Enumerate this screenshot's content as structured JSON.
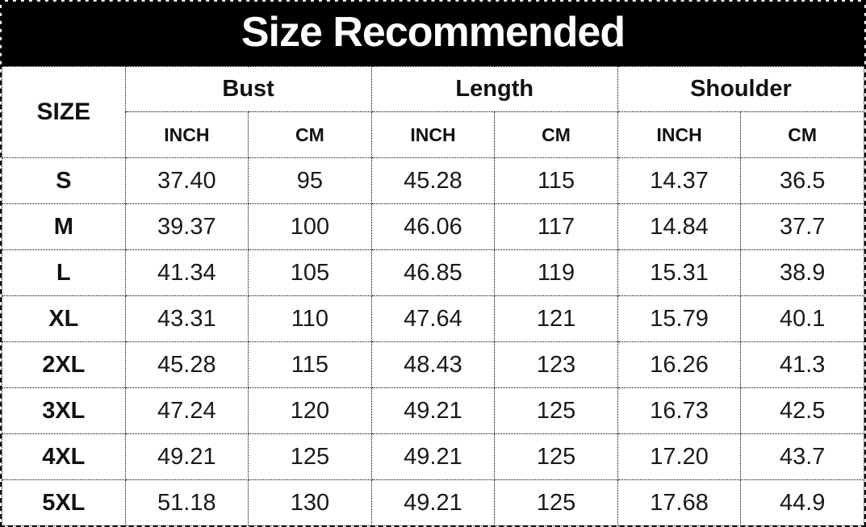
{
  "title": "Size Recommended",
  "colors": {
    "banner_bg": "#000000",
    "banner_text": "#ffffff",
    "text": "#1a1a1a",
    "border": "#000000",
    "background": "#ffffff"
  },
  "table": {
    "size_header": "SIZE",
    "groups": [
      {
        "label": "Bust"
      },
      {
        "label": "Length"
      },
      {
        "label": "Shoulder"
      }
    ],
    "unit_labels": [
      "INCH",
      "CM",
      "INCH",
      "CM",
      "INCH",
      "CM"
    ],
    "rows": [
      {
        "size": "S",
        "values": [
          "37.40",
          "95",
          "45.28",
          "115",
          "14.37",
          "36.5"
        ]
      },
      {
        "size": "M",
        "values": [
          "39.37",
          "100",
          "46.06",
          "117",
          "14.84",
          "37.7"
        ]
      },
      {
        "size": "L",
        "values": [
          "41.34",
          "105",
          "46.85",
          "119",
          "15.31",
          "38.9"
        ]
      },
      {
        "size": "XL",
        "values": [
          "43.31",
          "110",
          "47.64",
          "121",
          "15.79",
          "40.1"
        ]
      },
      {
        "size": "2XL",
        "values": [
          "45.28",
          "115",
          "48.43",
          "123",
          "16.26",
          "41.3"
        ]
      },
      {
        "size": "3XL",
        "values": [
          "47.24",
          "120",
          "49.21",
          "125",
          "16.73",
          "42.5"
        ]
      },
      {
        "size": "4XL",
        "values": [
          "49.21",
          "125",
          "49.21",
          "125",
          "17.20",
          "43.7"
        ]
      },
      {
        "size": "5XL",
        "values": [
          "51.18",
          "130",
          "49.21",
          "125",
          "17.68",
          "44.9"
        ]
      }
    ]
  },
  "chart_data": {
    "type": "table",
    "title": "Size Recommended",
    "columns": [
      "SIZE",
      "Bust INCH",
      "Bust CM",
      "Length INCH",
      "Length CM",
      "Shoulder INCH",
      "Shoulder CM"
    ],
    "rows": [
      [
        "S",
        37.4,
        95,
        45.28,
        115,
        14.37,
        36.5
      ],
      [
        "M",
        39.37,
        100,
        46.06,
        117,
        14.84,
        37.7
      ],
      [
        "L",
        41.34,
        105,
        46.85,
        119,
        15.31,
        38.9
      ],
      [
        "XL",
        43.31,
        110,
        47.64,
        121,
        15.79,
        40.1
      ],
      [
        "2XL",
        45.28,
        115,
        48.43,
        123,
        16.26,
        41.3
      ],
      [
        "3XL",
        47.24,
        120,
        49.21,
        125,
        16.73,
        42.5
      ],
      [
        "4XL",
        49.21,
        125,
        49.21,
        125,
        17.2,
        43.7
      ],
      [
        "5XL",
        51.18,
        130,
        49.21,
        125,
        17.68,
        44.9
      ]
    ]
  }
}
